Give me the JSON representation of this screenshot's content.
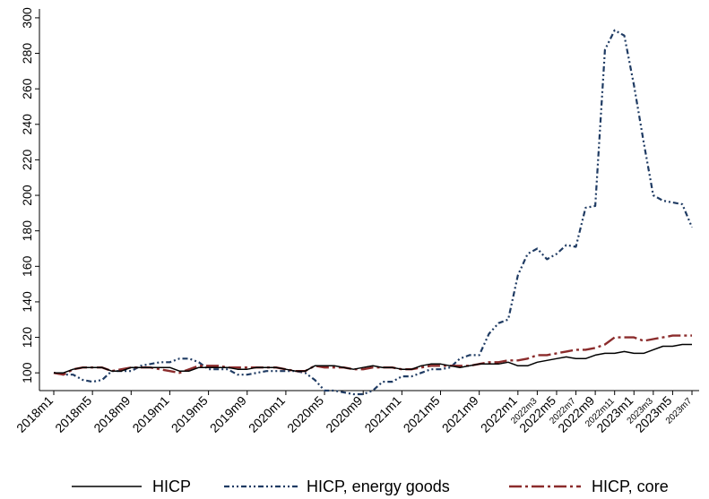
{
  "chart_data": {
    "type": "line",
    "title": "",
    "xlabel": "",
    "ylabel": "",
    "ylim": [
      90,
      305
    ],
    "yticks": [
      100,
      120,
      140,
      160,
      180,
      200,
      220,
      240,
      260,
      280,
      300
    ],
    "x": [
      "2018m1",
      "2018m2",
      "2018m3",
      "2018m4",
      "2018m5",
      "2018m6",
      "2018m7",
      "2018m8",
      "2018m9",
      "2018m10",
      "2018m11",
      "2018m12",
      "2019m1",
      "2019m2",
      "2019m3",
      "2019m4",
      "2019m5",
      "2019m6",
      "2019m7",
      "2019m8",
      "2019m9",
      "2019m10",
      "2019m11",
      "2019m12",
      "2020m1",
      "2020m2",
      "2020m3",
      "2020m4",
      "2020m5",
      "2020m6",
      "2020m7",
      "2020m8",
      "2020m9",
      "2020m10",
      "2020m11",
      "2020m12",
      "2021m1",
      "2021m2",
      "2021m3",
      "2021m4",
      "2021m5",
      "2021m6",
      "2021m7",
      "2021m8",
      "2021m9",
      "2021m10",
      "2021m11",
      "2021m12",
      "2022m1",
      "2022m2",
      "2022m3",
      "2022m4",
      "2022m5",
      "2022m6",
      "2022m7",
      "2022m8",
      "2022m9",
      "2022m10",
      "2022m11",
      "2022m12",
      "2023m1",
      "2023m2",
      "2023m3",
      "2023m4",
      "2023m5",
      "2023m6",
      "2023m7"
    ],
    "xtick_labels": [
      {
        "label": "2018m1",
        "small": false
      },
      {
        "label": "2018m5",
        "small": false
      },
      {
        "label": "2018m9",
        "small": false
      },
      {
        "label": "2019m1",
        "small": false
      },
      {
        "label": "2019m5",
        "small": false
      },
      {
        "label": "2019m9",
        "small": false
      },
      {
        "label": "2020m1",
        "small": false
      },
      {
        "label": "2020m5",
        "small": false
      },
      {
        "label": "2020m9",
        "small": false
      },
      {
        "label": "2021m1",
        "small": false
      },
      {
        "label": "2021m5",
        "small": false
      },
      {
        "label": "2021m9",
        "small": false
      },
      {
        "label": "2022m1",
        "small": false
      },
      {
        "label": "2022m3",
        "small": true
      },
      {
        "label": "2022m5",
        "small": false
      },
      {
        "label": "2022m7",
        "small": true
      },
      {
        "label": "2022m9",
        "small": false
      },
      {
        "label": "2022m11",
        "small": true
      },
      {
        "label": "2023m1",
        "small": false
      },
      {
        "label": "2023m3",
        "small": true
      },
      {
        "label": "2023m5",
        "small": false
      },
      {
        "label": "2023m7",
        "small": true
      }
    ],
    "grid": false,
    "legend_position": "bottom",
    "series": [
      {
        "name": "HICP",
        "color": "#000000",
        "style": "solid",
        "values": [
          100,
          100,
          102,
          103,
          103,
          103,
          101,
          101,
          103,
          103,
          103,
          103,
          103,
          101,
          101,
          103,
          103,
          103,
          103,
          102,
          102,
          103,
          103,
          103,
          102,
          101,
          101,
          104,
          104,
          104,
          103,
          102,
          103,
          104,
          103,
          103,
          102,
          102,
          104,
          105,
          105,
          104,
          103,
          104,
          105,
          105,
          105,
          106,
          104,
          104,
          106,
          107,
          108,
          109,
          108,
          108,
          110,
          111,
          111,
          112,
          111,
          111,
          113,
          115,
          115,
          116,
          116
        ]
      },
      {
        "name": "HICP, energy goods",
        "color": "#1f3b63",
        "style": "dash-dot-dot",
        "values": [
          100,
          99,
          99,
          96,
          95,
          96,
          101,
          101,
          101,
          104,
          105,
          106,
          106,
          108,
          108,
          106,
          102,
          102,
          102,
          99,
          99,
          100,
          101,
          101,
          101,
          101,
          100,
          96,
          90,
          90,
          89,
          88,
          88,
          90,
          95,
          95,
          98,
          98,
          100,
          102,
          102,
          103,
          108,
          110,
          110,
          122,
          128,
          130,
          155,
          167,
          170,
          164,
          167,
          172,
          171,
          193,
          194,
          282,
          293,
          290,
          262,
          230,
          200,
          197,
          196,
          195,
          182
        ]
      },
      {
        "name": "HICP, core",
        "color": "#8b2c2c",
        "style": "long-dash-dot",
        "values": [
          100,
          99,
          102,
          103,
          103,
          103,
          101,
          102,
          103,
          103,
          103,
          102,
          101,
          100,
          102,
          104,
          104,
          104,
          103,
          103,
          103,
          103,
          103,
          103,
          102,
          101,
          101,
          104,
          103,
          103,
          103,
          102,
          102,
          103,
          103,
          103,
          102,
          102,
          103,
          104,
          104,
          104,
          104,
          104,
          105,
          106,
          106,
          107,
          107,
          108,
          110,
          110,
          111,
          112,
          113,
          113,
          114,
          116,
          120,
          120,
          120,
          118,
          119,
          120,
          121,
          121,
          121
        ]
      }
    ]
  }
}
